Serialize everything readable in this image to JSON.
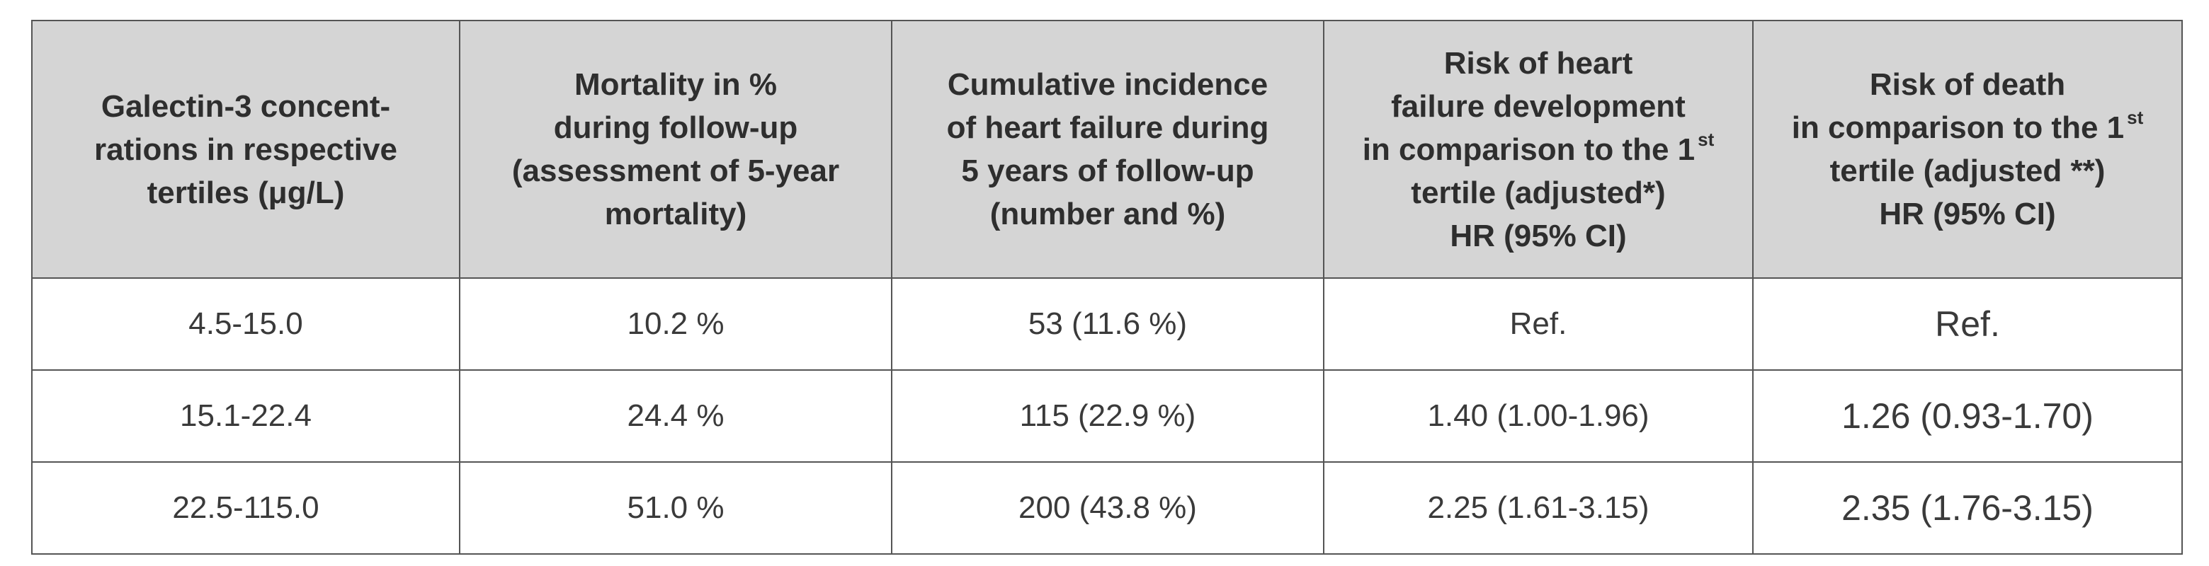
{
  "table": {
    "headers": [
      {
        "lines": [
          "Galectin-3 concent-",
          "rations in respective",
          "tertiles (μg/L)"
        ]
      },
      {
        "lines": [
          "Mortality in %",
          "during follow-up",
          "(assessment of 5-year",
          "mortality)"
        ]
      },
      {
        "lines": [
          "Cumulative incidence",
          "of heart failure during",
          "5 years of follow-up",
          "(number and %)"
        ]
      },
      {
        "lines": [
          "Risk of heart",
          "failure development",
          "in comparison to the 1",
          "tertile (adjusted*)",
          "HR (95% CI)"
        ],
        "superscript": "st"
      },
      {
        "lines": [
          "Risk of death",
          "in comparison to the 1",
          "tertile (adjusted **)",
          "HR (95% CI)"
        ],
        "superscript": "st"
      }
    ],
    "rows": [
      [
        "4.5-15.0",
        "10.2 %",
        "53 (11.6 %)",
        "Ref.",
        "Ref."
      ],
      [
        "15.1-22.4",
        "24.4 %",
        "115 (22.9 %)",
        "1.40 (1.00-1.96)",
        "1.26 (0.93-1.70)"
      ],
      [
        "22.5-115.0",
        "51.0 %",
        "200 (43.8 %)",
        "2.25 (1.61-3.15)",
        "2.35 (1.76-3.15)"
      ]
    ]
  }
}
